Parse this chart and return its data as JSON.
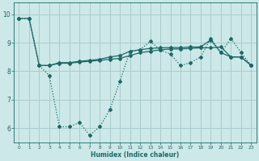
{
  "xlabel": "Humidex (Indice chaleur)",
  "bg_color": "#cce8e8",
  "grid_color": "#aacccc",
  "line_color": "#1a6868",
  "xlim": [
    -0.5,
    23.5
  ],
  "ylim": [
    5.5,
    10.4
  ],
  "yticks": [
    6,
    7,
    8,
    9,
    10
  ],
  "xticks": [
    0,
    1,
    2,
    3,
    4,
    5,
    6,
    7,
    8,
    9,
    10,
    11,
    12,
    13,
    14,
    15,
    16,
    17,
    18,
    19,
    20,
    21,
    22,
    23
  ],
  "line1_x": [
    0,
    1,
    2,
    3,
    4,
    5,
    6,
    7,
    8,
    9,
    10,
    11,
    12,
    13,
    14,
    15,
    16,
    17,
    18,
    19,
    20,
    21,
    22,
    23
  ],
  "line1_y": [
    9.85,
    9.85,
    8.2,
    7.85,
    6.05,
    6.05,
    6.2,
    5.75,
    6.05,
    6.65,
    7.65,
    8.7,
    8.75,
    9.05,
    8.75,
    8.6,
    8.2,
    8.3,
    8.5,
    9.15,
    8.65,
    9.15,
    8.65,
    8.2
  ],
  "line2_x": [
    0,
    1,
    2,
    3,
    4,
    5,
    6,
    7,
    8,
    9,
    10,
    11,
    12,
    13,
    14,
    15,
    16,
    17,
    18,
    19,
    20,
    21,
    22,
    23
  ],
  "line2_y": [
    9.85,
    9.85,
    8.2,
    8.2,
    8.3,
    8.3,
    8.35,
    8.38,
    8.42,
    8.5,
    8.55,
    8.7,
    8.75,
    8.8,
    8.82,
    8.83,
    8.83,
    8.85,
    8.85,
    9.1,
    8.65,
    8.5,
    8.5,
    8.2
  ],
  "line3_x": [
    2,
    3,
    4,
    5,
    6,
    7,
    8,
    9,
    10,
    11,
    12,
    13,
    14,
    15,
    16,
    17,
    18,
    19,
    20,
    21,
    22,
    23
  ],
  "line3_y": [
    8.2,
    8.2,
    8.28,
    8.28,
    8.32,
    8.35,
    8.38,
    8.42,
    8.45,
    8.55,
    8.65,
    8.7,
    8.75,
    8.78,
    8.78,
    8.8,
    8.82,
    8.82,
    8.85,
    8.5,
    8.5,
    8.2
  ],
  "marker_size": 2.0,
  "line_width": 0.9
}
